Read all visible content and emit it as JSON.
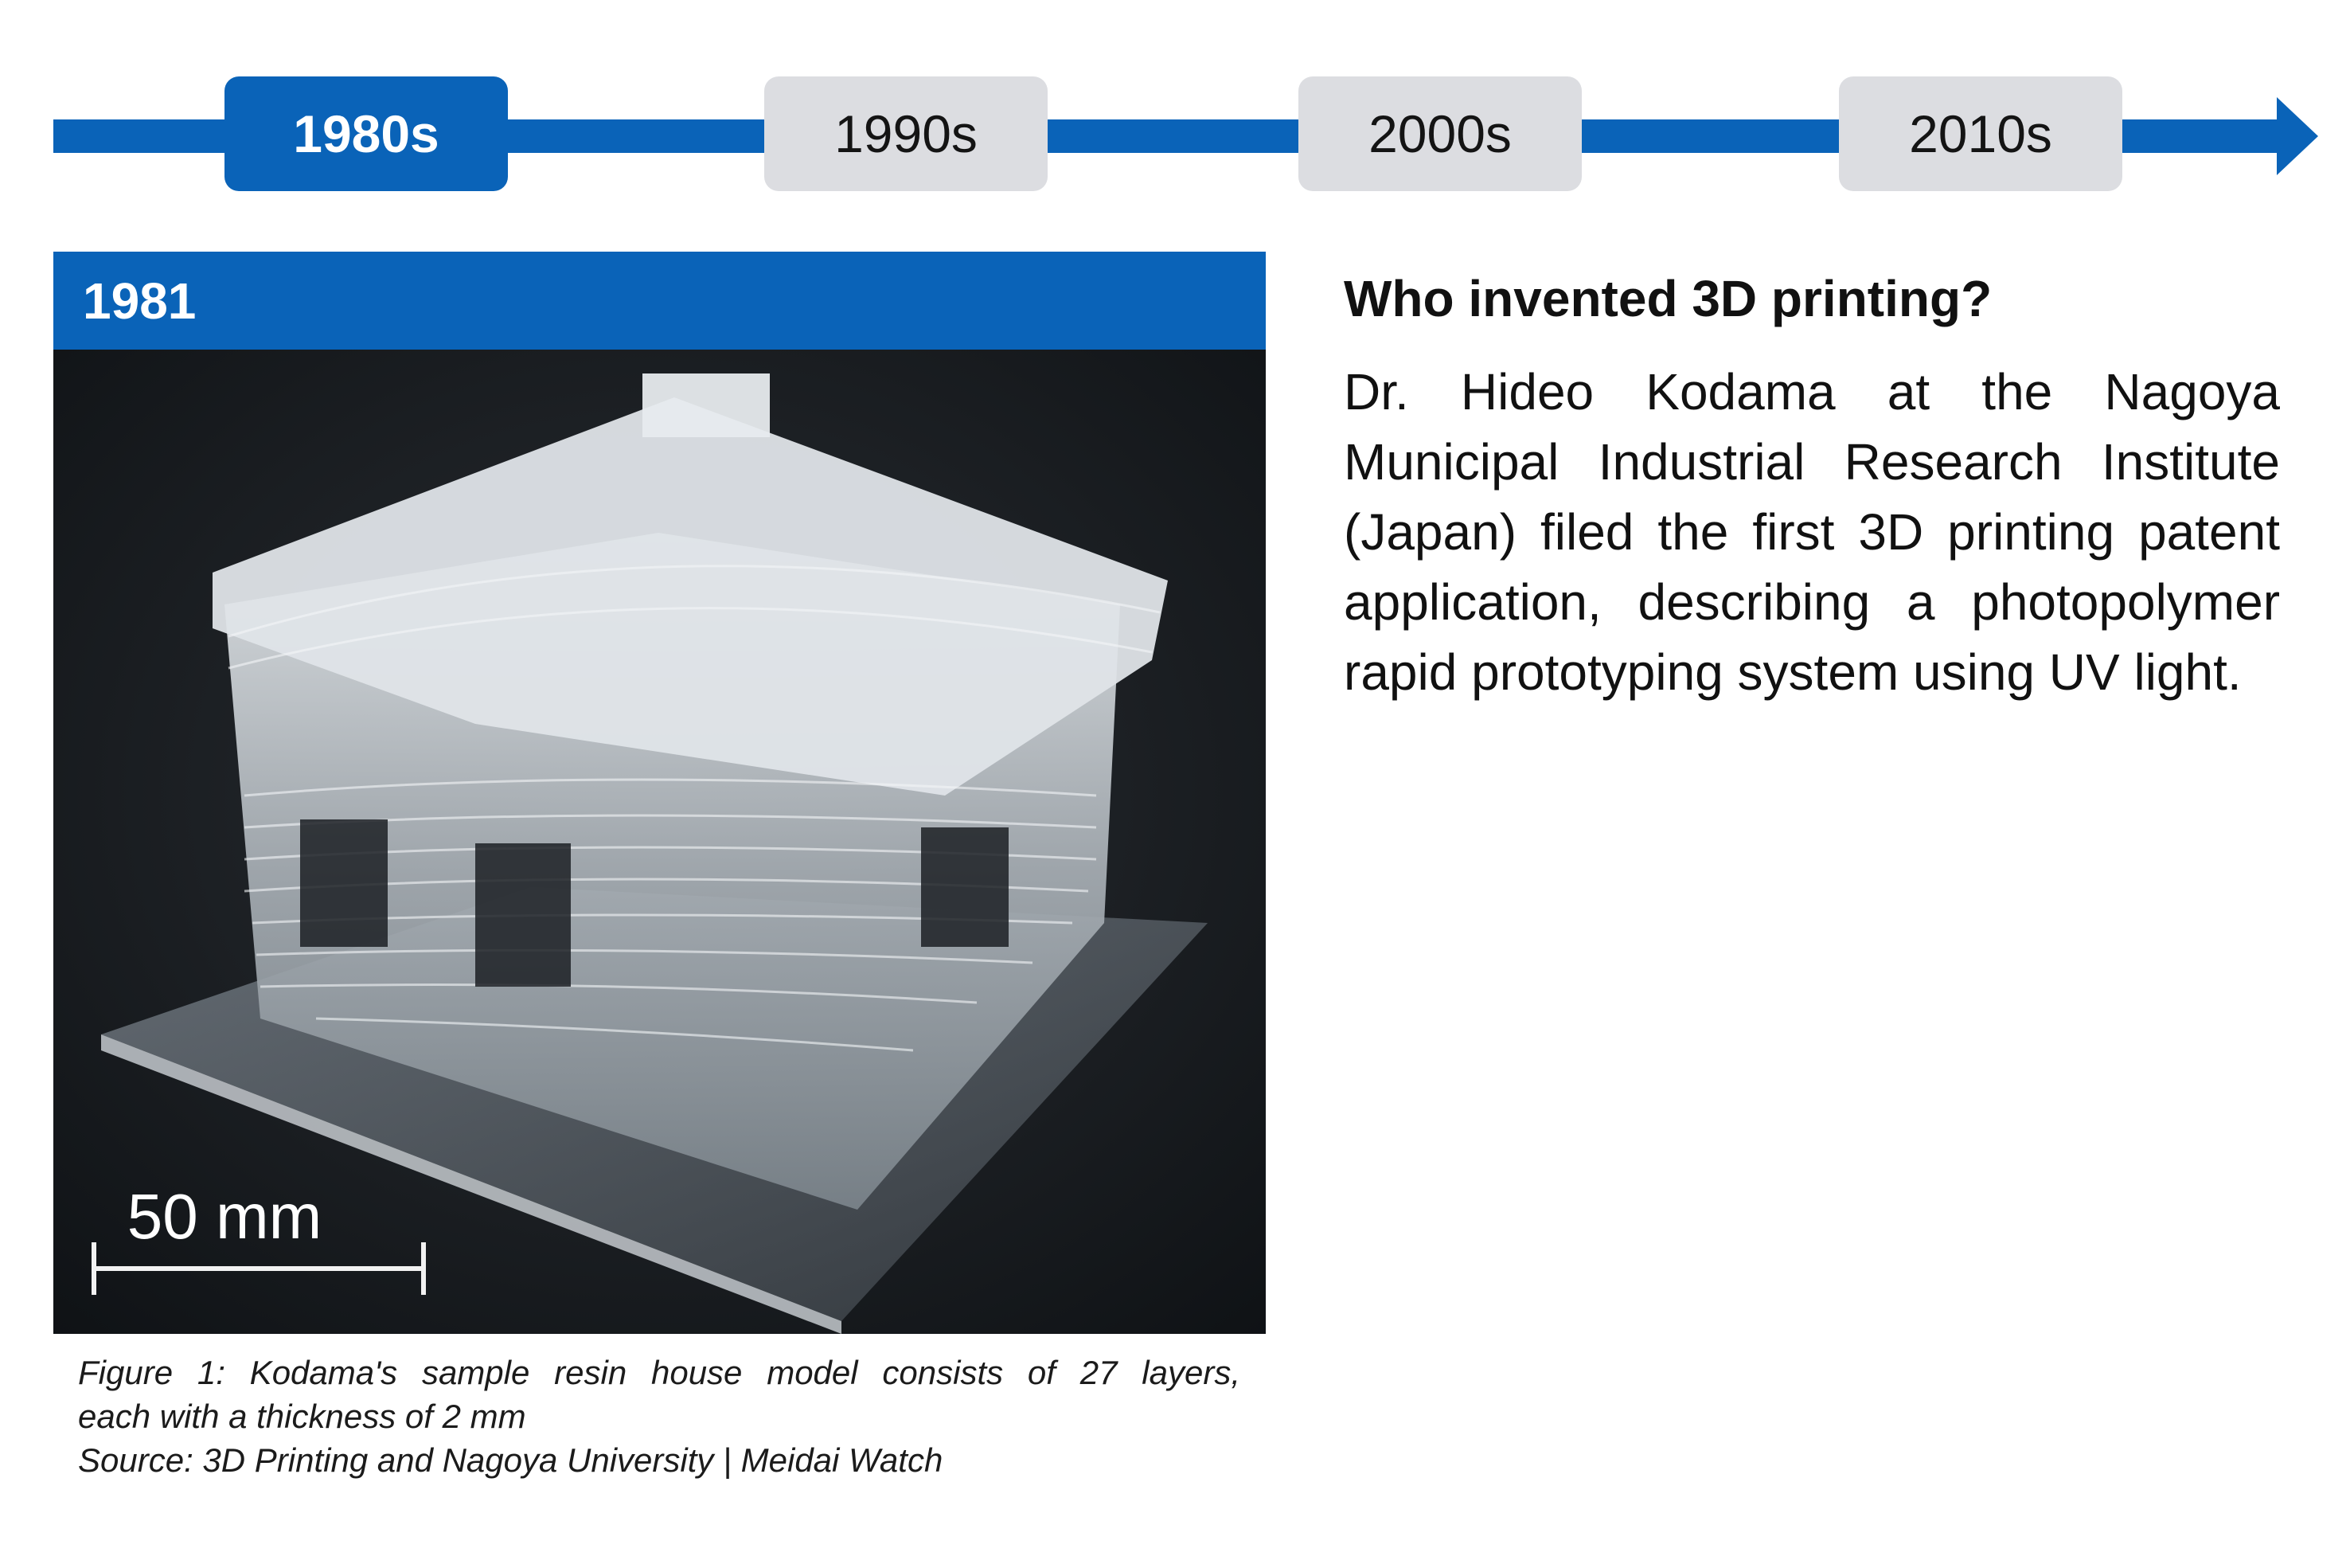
{
  "timeline": {
    "decades": [
      {
        "label": "1980s",
        "active": true
      },
      {
        "label": "1990s",
        "active": false
      },
      {
        "label": "2000s",
        "active": false
      },
      {
        "label": "2010s",
        "active": false
      }
    ],
    "accent_color": "#0a63b8",
    "inactive_color": "#dcdde1"
  },
  "entry": {
    "year": "1981",
    "photo": {
      "scale_label": "50 mm"
    },
    "caption": {
      "line1": "Figure 1: Kodama's sample resin house model consists of 27 layers,",
      "line2": "each with a thickness of 2 mm",
      "line3": "Source: 3D Printing and Nagoya University | Meidai Watch"
    }
  },
  "info": {
    "question": "Who invented 3D printing?",
    "answer": "Dr. Hideo Kodama at the Nagoya Municipal Industrial Research Institute (Japan) filed the first 3D printing patent application, describing a photopolymer rapid prototyping system using UV light."
  }
}
